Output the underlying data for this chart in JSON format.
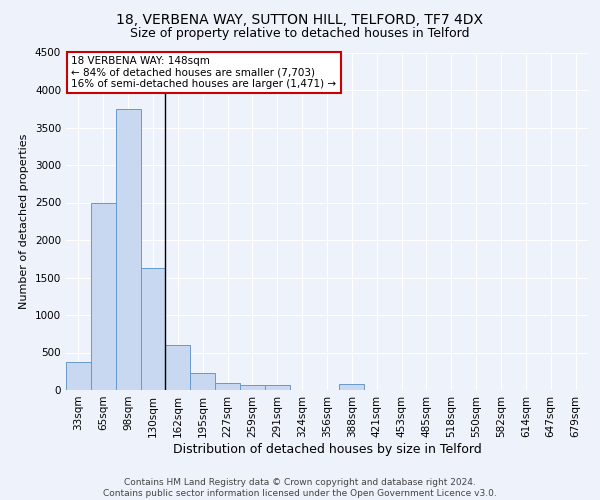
{
  "title1": "18, VERBENA WAY, SUTTON HILL, TELFORD, TF7 4DX",
  "title2": "Size of property relative to detached houses in Telford",
  "xlabel": "Distribution of detached houses by size in Telford",
  "ylabel": "Number of detached properties",
  "categories": [
    "33sqm",
    "65sqm",
    "98sqm",
    "130sqm",
    "162sqm",
    "195sqm",
    "227sqm",
    "259sqm",
    "291sqm",
    "324sqm",
    "356sqm",
    "388sqm",
    "421sqm",
    "453sqm",
    "485sqm",
    "518sqm",
    "550sqm",
    "582sqm",
    "614sqm",
    "647sqm",
    "679sqm"
  ],
  "values": [
    375,
    2500,
    3750,
    1625,
    600,
    225,
    100,
    65,
    65,
    0,
    0,
    75,
    0,
    0,
    0,
    0,
    0,
    0,
    0,
    0,
    0
  ],
  "bar_color": "#c8d8f0",
  "bar_edge_color": "#6699cc",
  "background_color": "#eef2fa",
  "vline_x": 3.5,
  "vline_color": "#000000",
  "annotation_text": "18 VERBENA WAY: 148sqm\n← 84% of detached houses are smaller (7,703)\n16% of semi-detached houses are larger (1,471) →",
  "annotation_box_color": "#ffffff",
  "annotation_edge_color": "#cc0000",
  "ylim": [
    0,
    4500
  ],
  "yticks": [
    0,
    500,
    1000,
    1500,
    2000,
    2500,
    3000,
    3500,
    4000,
    4500
  ],
  "footnote": "Contains HM Land Registry data © Crown copyright and database right 2024.\nContains public sector information licensed under the Open Government Licence v3.0.",
  "title1_fontsize": 10,
  "title2_fontsize": 9,
  "xlabel_fontsize": 9,
  "ylabel_fontsize": 8,
  "tick_fontsize": 7.5,
  "footnote_fontsize": 6.5,
  "annotation_fontsize": 7.5
}
